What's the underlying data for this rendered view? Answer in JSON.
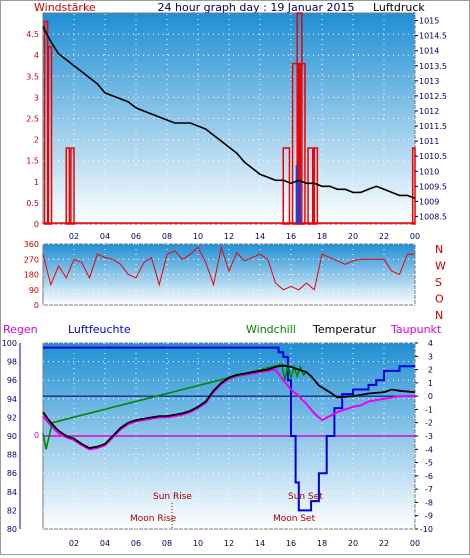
{
  "header": {
    "left_label": "Windstärke",
    "title": "24 hour graph day : 19 Januar 2015",
    "right_label": "Luftdruck"
  },
  "colors": {
    "wind": "#ee0000",
    "gust_blue": "#1a3ee0",
    "pressure": "#000000",
    "humidity": "#0000dd",
    "windchill": "#008800",
    "dewpoint": "#ee00ee",
    "rain": "#dd00dd",
    "sky_top": "#1f8fd4",
    "sky_bottom": "#ffffff",
    "label_red": "#cc0000",
    "axis_text": "#000066"
  },
  "chart_data": [
    {
      "type": "line",
      "name": "wind_pressure",
      "x_ticks": [
        "02",
        "04",
        "06",
        "08",
        "10",
        "12",
        "14",
        "16",
        "18",
        "20",
        "22",
        "00"
      ],
      "left_axis": {
        "label": "Windstärke",
        "ticks": [
          "0",
          "0.5",
          "1",
          "1.5",
          "2",
          "2.5",
          "3",
          "3.5",
          "4",
          "4.5"
        ],
        "ylim": [
          0,
          5
        ]
      },
      "right_axis": {
        "label": "Luftdruck",
        "ticks": [
          "1008.5",
          "1009",
          "1009.5",
          "1010",
          "1010.5",
          "1011",
          "1011.5",
          "1012",
          "1012.5",
          "1013",
          "1013.5",
          "1014",
          "1014.5",
          "1015"
        ],
        "ylim": [
          1008.25,
          1015.25
        ]
      },
      "pressure": [
        [
          0.0,
          1014.8
        ],
        [
          0.5,
          1014.3
        ],
        [
          1.0,
          1013.9
        ],
        [
          1.5,
          1013.7
        ],
        [
          2.0,
          1013.5
        ],
        [
          2.5,
          1013.3
        ],
        [
          3.0,
          1013.1
        ],
        [
          3.5,
          1012.9
        ],
        [
          4.0,
          1012.6
        ],
        [
          4.5,
          1012.5
        ],
        [
          5.0,
          1012.4
        ],
        [
          5.5,
          1012.3
        ],
        [
          6.0,
          1012.1
        ],
        [
          6.5,
          1012.0
        ],
        [
          7.0,
          1011.9
        ],
        [
          7.5,
          1011.8
        ],
        [
          8.0,
          1011.7
        ],
        [
          8.5,
          1011.6
        ],
        [
          9.0,
          1011.6
        ],
        [
          9.5,
          1011.6
        ],
        [
          10.0,
          1011.5
        ],
        [
          10.5,
          1011.4
        ],
        [
          11.0,
          1011.2
        ],
        [
          11.5,
          1011.0
        ],
        [
          12.0,
          1010.8
        ],
        [
          12.5,
          1010.6
        ],
        [
          13.0,
          1010.3
        ],
        [
          13.5,
          1010.1
        ],
        [
          14.0,
          1009.9
        ],
        [
          14.5,
          1009.8
        ],
        [
          15.0,
          1009.7
        ],
        [
          15.5,
          1009.7
        ],
        [
          16.0,
          1009.6
        ],
        [
          16.5,
          1009.7
        ],
        [
          17.0,
          1009.6
        ],
        [
          17.5,
          1009.6
        ],
        [
          18.0,
          1009.5
        ],
        [
          18.5,
          1009.5
        ],
        [
          19.0,
          1009.4
        ],
        [
          19.5,
          1009.4
        ],
        [
          20.0,
          1009.3
        ],
        [
          20.5,
          1009.3
        ],
        [
          21.0,
          1009.4
        ],
        [
          21.5,
          1009.5
        ],
        [
          22.0,
          1009.4
        ],
        [
          22.5,
          1009.3
        ],
        [
          23.0,
          1009.2
        ],
        [
          23.5,
          1009.2
        ],
        [
          24.0,
          1009.1
        ]
      ],
      "wind_spikes": [
        [
          0.1,
          0.2,
          4.8
        ],
        [
          0.35,
          0.2,
          4.2
        ],
        [
          1.5,
          0.2,
          1.8
        ],
        [
          1.8,
          0.2,
          1.8
        ],
        [
          15.5,
          0.4,
          1.8
        ],
        [
          16.1,
          0.4,
          3.8
        ],
        [
          16.4,
          0.3,
          5.0
        ],
        [
          16.6,
          0.3,
          3.8
        ],
        [
          17.1,
          0.3,
          1.8
        ],
        [
          17.5,
          0.2,
          1.8
        ],
        [
          23.85,
          0.15,
          1.8
        ]
      ],
      "gust_spikes": [
        [
          16.3,
          0.15,
          1.4
        ],
        [
          16.5,
          0.15,
          1.0
        ]
      ]
    },
    {
      "type": "line",
      "name": "wind_direction",
      "left_ticks": [
        "360",
        "270",
        "180",
        "90",
        "0"
      ],
      "ylim": [
        0,
        360
      ],
      "right_labels": [
        "N",
        "W",
        "S",
        "O",
        "N"
      ],
      "direction": [
        [
          0.0,
          300
        ],
        [
          0.5,
          120
        ],
        [
          1.0,
          230
        ],
        [
          1.5,
          160
        ],
        [
          2.0,
          270
        ],
        [
          2.5,
          250
        ],
        [
          3.0,
          160
        ],
        [
          3.5,
          300
        ],
        [
          4.0,
          280
        ],
        [
          4.5,
          270
        ],
        [
          5.0,
          240
        ],
        [
          5.5,
          180
        ],
        [
          6.0,
          160
        ],
        [
          6.5,
          250
        ],
        [
          7.0,
          280
        ],
        [
          7.5,
          120
        ],
        [
          8.0,
          300
        ],
        [
          8.5,
          320
        ],
        [
          9.0,
          270
        ],
        [
          9.5,
          300
        ],
        [
          10.0,
          340
        ],
        [
          10.5,
          250
        ],
        [
          11.0,
          120
        ],
        [
          11.5,
          340
        ],
        [
          12.0,
          200
        ],
        [
          12.5,
          310
        ],
        [
          13.0,
          260
        ],
        [
          13.5,
          280
        ],
        [
          14.0,
          300
        ],
        [
          14.5,
          270
        ],
        [
          15.0,
          130
        ],
        [
          15.5,
          90
        ],
        [
          16.0,
          110
        ],
        [
          16.5,
          90
        ],
        [
          17.0,
          130
        ],
        [
          17.5,
          90
        ],
        [
          18.0,
          300
        ],
        [
          18.5,
          280
        ],
        [
          19.0,
          260
        ],
        [
          19.5,
          240
        ],
        [
          20.0,
          260
        ],
        [
          20.5,
          270
        ],
        [
          21.0,
          270
        ],
        [
          21.5,
          270
        ],
        [
          22.0,
          270
        ],
        [
          22.5,
          200
        ],
        [
          23.0,
          180
        ],
        [
          23.5,
          300
        ],
        [
          24.0,
          300
        ]
      ]
    },
    {
      "type": "line",
      "name": "temperature_humidity",
      "labels": {
        "rain": "Regen",
        "humidity": "Luftfeuchte",
        "windchill": "Windchill",
        "temperature": "Temperatur",
        "dewpoint": "Taupunkt",
        "zero": "0"
      },
      "left_axis": {
        "ticks": [
          "100",
          "98",
          "96",
          "94",
          "92",
          "90",
          "88",
          "86",
          "84",
          "82",
          "80"
        ],
        "ylim": [
          80,
          100
        ]
      },
      "right_axis": {
        "ticks": [
          "4",
          "3",
          "2",
          "1",
          "0",
          "-1",
          "-2",
          "-3",
          "-4",
          "-5",
          "-6",
          "-7",
          "-8",
          "-9",
          "-10"
        ],
        "ylim": [
          -10,
          4
        ]
      },
      "humidity": [
        [
          0.0,
          99.5
        ],
        [
          15.0,
          99.5
        ],
        [
          15.2,
          99.0
        ],
        [
          15.5,
          98.5
        ],
        [
          15.8,
          96.0
        ],
        [
          16.0,
          90.0
        ],
        [
          16.3,
          85.0
        ],
        [
          16.5,
          82.0
        ],
        [
          17.0,
          82.0
        ],
        [
          17.3,
          83.0
        ],
        [
          17.8,
          86.0
        ],
        [
          18.3,
          90.0
        ],
        [
          18.8,
          93.0
        ],
        [
          19.3,
          94.5
        ],
        [
          20.0,
          95.0
        ],
        [
          21.0,
          95.5
        ],
        [
          21.5,
          96.0
        ],
        [
          22.0,
          97.0
        ],
        [
          23.0,
          97.5
        ],
        [
          24.0,
          97.5
        ]
      ],
      "temperature": [
        [
          0.0,
          -1.2
        ],
        [
          0.5,
          -2.0
        ],
        [
          1.0,
          -2.6
        ],
        [
          1.5,
          -3.0
        ],
        [
          2.0,
          -3.2
        ],
        [
          2.5,
          -3.6
        ],
        [
          3.0,
          -3.9
        ],
        [
          3.5,
          -3.8
        ],
        [
          4.0,
          -3.6
        ],
        [
          4.5,
          -3.0
        ],
        [
          5.0,
          -2.4
        ],
        [
          5.5,
          -2.0
        ],
        [
          6.0,
          -1.8
        ],
        [
          6.5,
          -1.7
        ],
        [
          7.0,
          -1.6
        ],
        [
          7.5,
          -1.5
        ],
        [
          8.0,
          -1.5
        ],
        [
          8.5,
          -1.4
        ],
        [
          9.0,
          -1.3
        ],
        [
          9.5,
          -1.1
        ],
        [
          10.0,
          -0.8
        ],
        [
          10.5,
          -0.4
        ],
        [
          11.0,
          0.4
        ],
        [
          11.5,
          1.0
        ],
        [
          12.0,
          1.4
        ],
        [
          12.5,
          1.6
        ],
        [
          13.0,
          1.7
        ],
        [
          13.5,
          1.8
        ],
        [
          14.0,
          1.9
        ],
        [
          14.5,
          2.0
        ],
        [
          15.0,
          2.2
        ],
        [
          15.5,
          2.3
        ],
        [
          16.0,
          2.2
        ],
        [
          16.5,
          2.0
        ],
        [
          17.0,
          1.8
        ],
        [
          17.3,
          1.5
        ],
        [
          17.8,
          0.8
        ],
        [
          18.5,
          0.3
        ],
        [
          19.0,
          -0.1
        ],
        [
          20.0,
          0.0
        ],
        [
          21.0,
          0.2
        ],
        [
          22.0,
          0.3
        ],
        [
          22.5,
          0.5
        ],
        [
          23.0,
          0.4
        ],
        [
          24.0,
          0.3
        ]
      ],
      "dewpoint": [
        [
          0.0,
          -1.5
        ],
        [
          0.5,
          -2.2
        ],
        [
          1.0,
          -2.8
        ],
        [
          1.5,
          -3.1
        ],
        [
          2.0,
          -3.3
        ],
        [
          2.5,
          -3.7
        ],
        [
          3.0,
          -4.0
        ],
        [
          3.5,
          -3.9
        ],
        [
          4.0,
          -3.7
        ],
        [
          4.5,
          -3.1
        ],
        [
          5.0,
          -2.5
        ],
        [
          5.5,
          -2.1
        ],
        [
          6.0,
          -1.9
        ],
        [
          6.5,
          -1.8
        ],
        [
          7.0,
          -1.7
        ],
        [
          7.5,
          -1.6
        ],
        [
          8.0,
          -1.6
        ],
        [
          8.5,
          -1.5
        ],
        [
          9.0,
          -1.4
        ],
        [
          9.5,
          -1.2
        ],
        [
          10.0,
          -0.9
        ],
        [
          10.5,
          -0.5
        ],
        [
          11.0,
          0.3
        ],
        [
          11.5,
          0.9
        ],
        [
          12.0,
          1.3
        ],
        [
          12.5,
          1.5
        ],
        [
          13.0,
          1.6
        ],
        [
          13.5,
          1.7
        ],
        [
          14.0,
          1.8
        ],
        [
          14.5,
          1.9
        ],
        [
          15.0,
          2.0
        ],
        [
          15.5,
          1.2
        ],
        [
          16.0,
          0.5
        ],
        [
          16.5,
          0.0
        ],
        [
          17.0,
          -0.6
        ],
        [
          17.5,
          -1.3
        ],
        [
          18.0,
          -1.8
        ],
        [
          18.5,
          -1.5
        ],
        [
          19.0,
          -1.2
        ],
        [
          19.5,
          -1.0
        ],
        [
          20.0,
          -0.8
        ],
        [
          20.5,
          -0.7
        ],
        [
          21.0,
          -0.4
        ],
        [
          22.0,
          -0.2
        ],
        [
          23.0,
          0.0
        ],
        [
          24.0,
          0.0
        ]
      ],
      "windchill": [
        [
          0.0,
          -2.8
        ],
        [
          0.2,
          -4.0
        ],
        [
          0.4,
          -3.0
        ],
        [
          0.6,
          -2.0
        ],
        [
          15.4,
          2.4
        ],
        [
          15.6,
          1.2
        ],
        [
          15.8,
          2.4
        ],
        [
          16.0,
          1.4
        ],
        [
          16.2,
          2.2
        ],
        [
          16.4,
          1.5
        ],
        [
          16.6,
          2.2
        ],
        [
          16.8,
          1.6
        ],
        [
          17.0,
          1.8
        ]
      ],
      "rain": [
        [
          0.0,
          0.0
        ],
        [
          24.0,
          0.0
        ]
      ],
      "events": {
        "sun_rise": "Sun Rise",
        "moon_rise": "Moon Rise",
        "sun_set": "Sun Set",
        "moon_set": "Moon Set"
      }
    }
  ]
}
